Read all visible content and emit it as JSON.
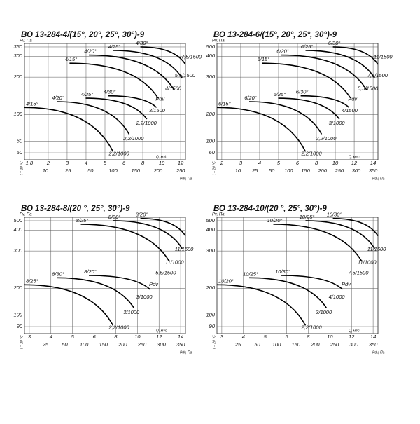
{
  "panels": [
    {
      "title": "ВО 13-284-4/(15°, 20°, 25°, 30°)-9",
      "y_label": "Pv, Па",
      "side_label": "t = 20 °C",
      "yticks": [
        "350",
        "300",
        "200",
        "100",
        "60",
        "50"
      ],
      "xticks": [
        "1,8",
        "2",
        "3",
        "4",
        "5",
        "6",
        "8",
        "10",
        "12"
      ],
      "x_label": "Q, м³/с",
      "x2ticks": [
        "10",
        "25",
        "50",
        "100",
        "150",
        "200",
        "250"
      ],
      "x2_label": "Pdv, Па",
      "curve_labels": [
        "4/15°",
        "4/20°",
        "4/25°",
        "4/30°",
        "4/15°",
        "4/20°",
        "4/25°",
        "4/30°"
      ],
      "motor_labels": [
        "7,5/1500",
        "5,5/1500",
        "4/1500",
        "Pdv",
        "3/1500",
        "2,2/1000",
        "2,2/1000",
        "2,2/1000"
      ]
    },
    {
      "title": "ВО 13-284-6/(15°, 20°, 25°, 30°)-9",
      "y_label": "Pv, Па",
      "side_label": "t = 20 °C",
      "yticks": [
        "500",
        "400",
        "300",
        "200",
        "100",
        "60"
      ],
      "xticks": [
        "2",
        "3",
        "4",
        "5",
        "6",
        "8",
        "10",
        "12",
        "14"
      ],
      "x_label": "Q, м³/с",
      "x2ticks": [
        "10",
        "25",
        "50",
        "100",
        "150",
        "200",
        "250",
        "300",
        "350"
      ],
      "x2_label": "Pdv, Па",
      "curve_labels": [
        "6/15°",
        "6/20°",
        "6/25°",
        "6/30°",
        "6/15°",
        "6/20°",
        "6/25°",
        "6/30°"
      ],
      "motor_labels": [
        "11/1500",
        "7,5/1500",
        "5,5/1500",
        "Pdv",
        "4/1500",
        "3/1000",
        "2,2/1000",
        "2,2/1000"
      ]
    },
    {
      "title": "ВО 13-284-8/(20 °, 25°, 30°)-9",
      "y_label": "Pv, Па",
      "side_label": "t = 20 °C",
      "yticks": [
        "500",
        "400",
        "300",
        "200",
        "100",
        "90"
      ],
      "xticks": [
        "3",
        "4",
        "5",
        "6",
        "8",
        "10",
        "12",
        "14"
      ],
      "x_label": "Q, м³/с",
      "x2ticks": [
        "25",
        "50",
        "100",
        "150",
        "200",
        "250",
        "300",
        "350"
      ],
      "x2_label": "Pdv, Па",
      "curve_labels": [
        "8/25°",
        "8/30°",
        "8/20°",
        "8/25°",
        "8/30°",
        "8/20°"
      ],
      "motor_labels": [
        "11/1500",
        "11/1000",
        "5,5/1500",
        "Pdv",
        "3/1000",
        "3/1000",
        "2,2/1000"
      ]
    },
    {
      "title": "ВО 13-284-10/(20 °, 25°, 30°)-9",
      "y_label": "Pv, Па",
      "side_label": "t = 20 °C",
      "yticks": [
        "500",
        "400",
        "300",
        "200",
        "100",
        "90"
      ],
      "xticks": [
        "3",
        "4",
        "5",
        "6",
        "8",
        "10",
        "12",
        "14"
      ],
      "x_label": "Q, м³/с",
      "x2ticks": [
        "25",
        "50",
        "100",
        "150",
        "200",
        "250",
        "300",
        "350"
      ],
      "x2_label": "Pdv, Па",
      "curve_labels": [
        "10/20°",
        "10/25°",
        "10/30°",
        "10/20°",
        "10/25°",
        "10/30°"
      ],
      "motor_labels": [
        "11/1500",
        "11/1000",
        "7,5/1500",
        "Pdv",
        "4/1000",
        "3/1000",
        "2,2/1000"
      ]
    }
  ]
}
